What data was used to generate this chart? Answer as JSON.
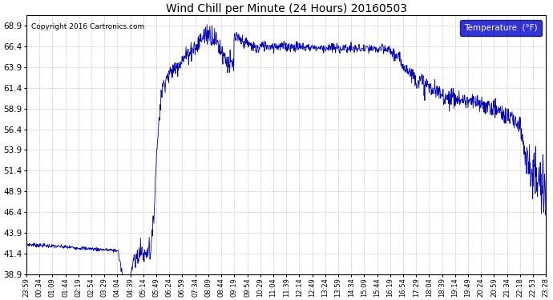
{
  "title": "Wind Chill per Minute (24 Hours) 20160503",
  "copyright_text": "Copyright 2016 Cartronics.com",
  "legend_label": "Temperature  (°F)",
  "line_color": "#0000bb",
  "bg_color": "#ffffff",
  "plot_bg_color": "#ffffff",
  "grid_color": "#bbbbbb",
  "ylim": [
    38.9,
    70.15
  ],
  "yticks": [
    38.9,
    41.4,
    43.9,
    46.4,
    48.9,
    51.4,
    53.9,
    56.4,
    58.9,
    61.4,
    63.9,
    66.4,
    68.9
  ],
  "xlabel_fontsize": 6.0,
  "ylabel_fontsize": 7.5,
  "title_fontsize": 10,
  "legend_bg": "#0000cc",
  "legend_text_color": "#ffffff",
  "num_minutes": 1440,
  "tick_times": [
    "23:59",
    "00:34",
    "01:09",
    "01:44",
    "02:19",
    "02:54",
    "03:29",
    "04:04",
    "04:39",
    "05:14",
    "05:49",
    "06:24",
    "06:59",
    "07:34",
    "08:09",
    "08:44",
    "09:19",
    "09:54",
    "10:29",
    "11:04",
    "11:39",
    "12:14",
    "12:49",
    "13:24",
    "13:59",
    "14:34",
    "15:09",
    "15:44",
    "16:19",
    "16:54",
    "17:29",
    "18:04",
    "18:39",
    "19:14",
    "19:49",
    "20:24",
    "20:59",
    "21:34",
    "22:18",
    "22:53",
    "23:28"
  ]
}
